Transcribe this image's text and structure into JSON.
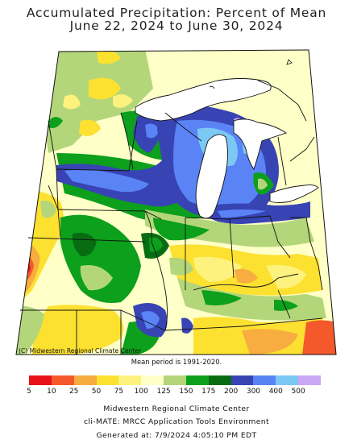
{
  "title": {
    "line1": "Accumulated Precipitation: Percent of Mean",
    "line2": "June 22, 2024 to June 30, 2024"
  },
  "map": {
    "credit": "(C) Midwestern Regional Climate Center",
    "mean_period": "Mean period is 1991-2020."
  },
  "legend": {
    "ticks": [
      "5",
      "10",
      "25",
      "50",
      "75",
      "100",
      "125",
      "150",
      "175",
      "200",
      "300",
      "400",
      "500"
    ],
    "colors": [
      "#e8111a",
      "#f5592b",
      "#f7ad3f",
      "#fde131",
      "#fdf27d",
      "#ffffc8",
      "#b3d67a",
      "#0ca01c",
      "#086d12",
      "#3844b4",
      "#5a84f5",
      "#7cc8f5",
      "#cba7f5"
    ]
  },
  "footer": {
    "line1": "Midwestern Regional Climate Center",
    "line2": "cli-MATE: MRCC Application Tools Environment",
    "line3": "Generated at: 7/9/2024 4:05:10 PM EDT"
  }
}
